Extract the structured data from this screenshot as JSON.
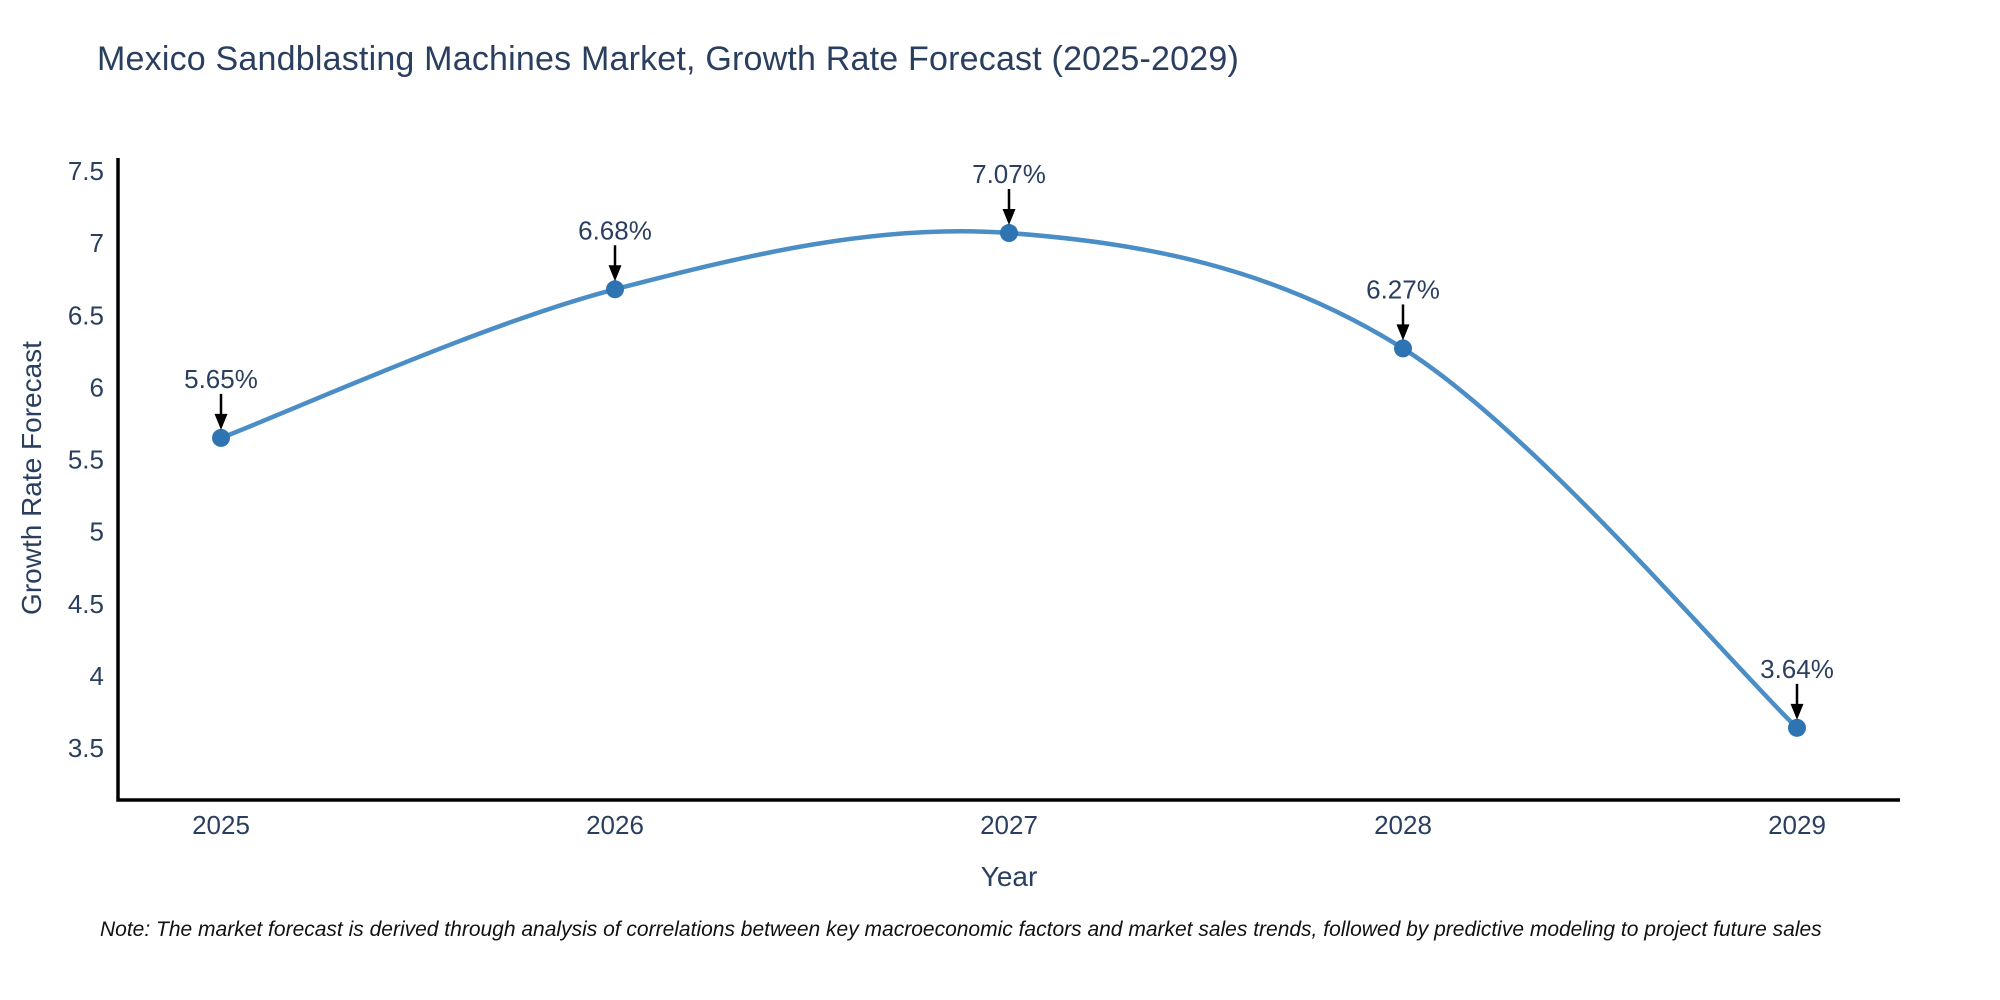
{
  "chart_data": {
    "type": "line",
    "title": "Mexico Sandblasting Machines Market, Growth Rate Forecast (2025-2029)",
    "xlabel": "Year",
    "ylabel": "Growth Rate Forecast",
    "categories": [
      "2025",
      "2026",
      "2027",
      "2028",
      "2029"
    ],
    "values": [
      5.65,
      6.68,
      7.07,
      6.27,
      3.64
    ],
    "point_labels": [
      "5.65%",
      "6.68%",
      "7.07%",
      "6.27%",
      "3.64%"
    ],
    "yticks": [
      "7.5",
      "7",
      "6.5",
      "6",
      "5.5",
      "5",
      "4.5",
      "4",
      "3.5"
    ],
    "ytick_values": [
      7.5,
      7,
      6.5,
      6,
      5.5,
      5,
      4.5,
      4,
      3.5
    ],
    "ylim": [
      3.14,
      7.59
    ],
    "line_shape": "spline",
    "grid": false,
    "legend": "none",
    "colors": {
      "line": "#4a8ec5",
      "marker": "#2e73b2",
      "axis": "#000000",
      "text": "#2a3f5f",
      "arrow": "#000000"
    }
  },
  "footnote": {
    "text": "Note: The market forecast is derived through analysis of correlations between key macroeconomic factors and market sales trends, followed by predictive modeling to project future sales"
  }
}
